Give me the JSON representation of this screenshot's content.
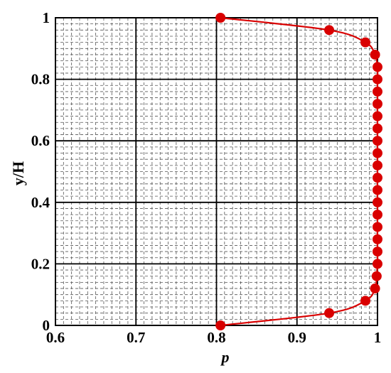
{
  "chart_data": {
    "type": "line",
    "xlabel": "p",
    "ylabel": "y/H",
    "xlim": [
      0.6,
      1.0
    ],
    "ylim": [
      0,
      1
    ],
    "x_ticks": [
      0.6,
      0.7,
      0.8,
      0.9,
      1.0
    ],
    "x_tick_labels": [
      "0.6",
      "0.7",
      "0.8",
      "0.9",
      "1"
    ],
    "y_ticks": [
      0,
      0.2,
      0.4,
      0.6,
      0.8,
      1.0
    ],
    "y_tick_labels": [
      "0",
      "0.2",
      "0.4",
      "0.6",
      "0.8",
      "1"
    ],
    "grid": "major solid, minor dashed",
    "series": [
      {
        "color": "#d90000",
        "markers": "filled-circle",
        "y": [
          0.0,
          0.04,
          0.08,
          0.12,
          0.16,
          0.2,
          0.24,
          0.28,
          0.32,
          0.36,
          0.4,
          0.44,
          0.48,
          0.52,
          0.56,
          0.6,
          0.64,
          0.68,
          0.72,
          0.76,
          0.8,
          0.84,
          0.88,
          0.92,
          0.96,
          1.0
        ],
        "x": [
          0.805,
          0.94,
          0.985,
          0.997,
          0.999,
          1.0,
          1.0,
          1.0,
          1.0,
          1.0,
          1.0,
          1.0,
          1.0,
          1.0,
          1.0,
          1.0,
          1.0,
          1.0,
          1.0,
          1.0,
          1.0,
          1.0,
          0.997,
          0.985,
          0.94,
          0.805
        ]
      }
    ]
  }
}
